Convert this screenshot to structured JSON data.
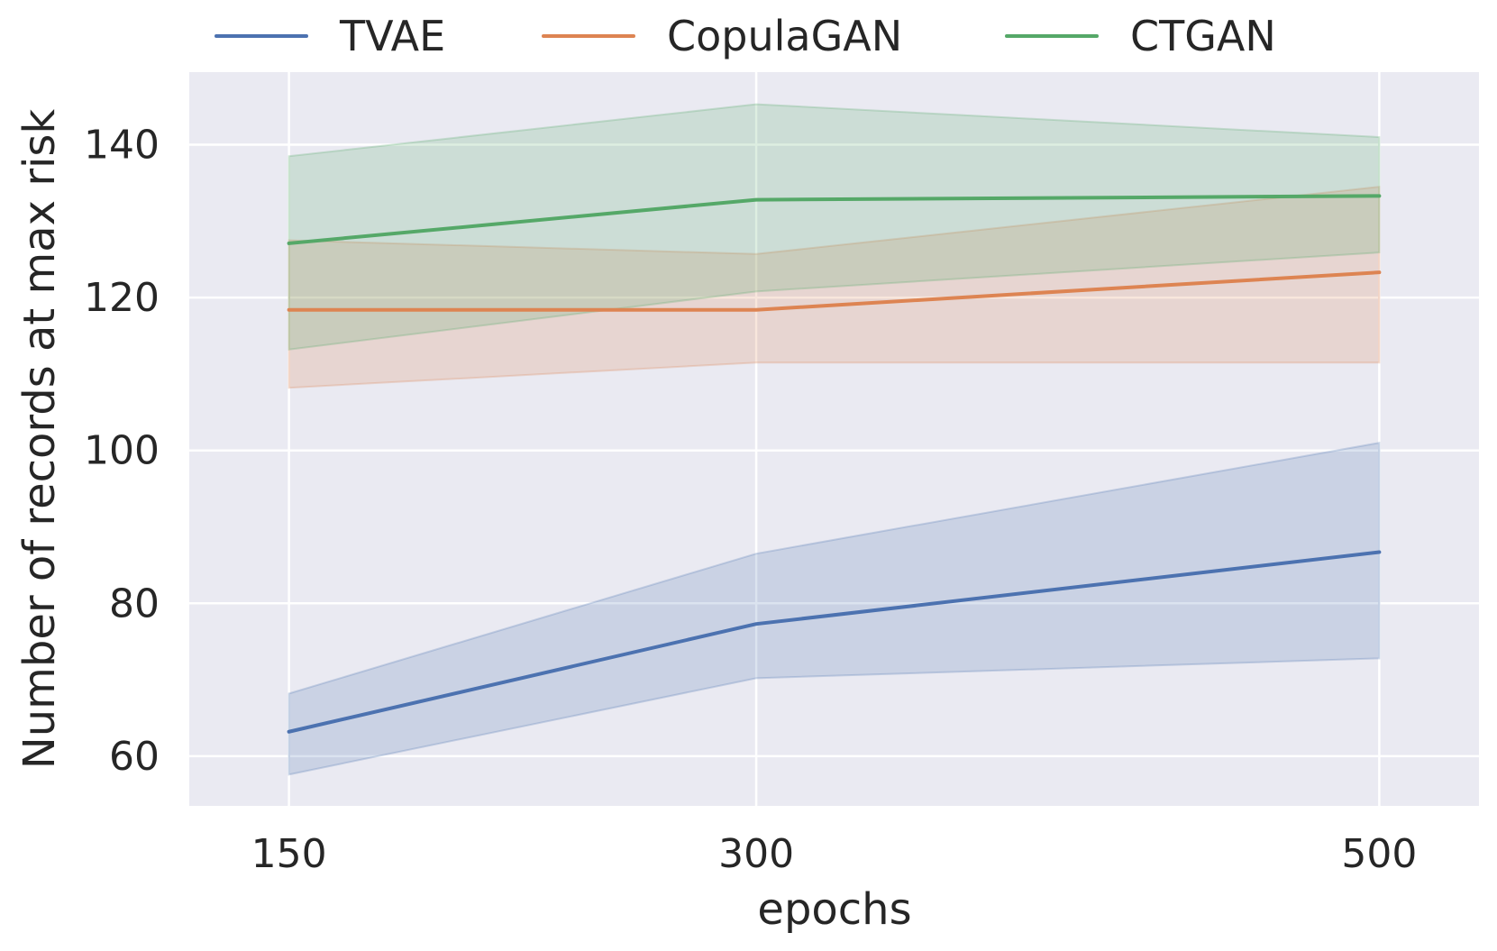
{
  "chart_data": {
    "type": "line",
    "title": "",
    "xlabel": "epochs",
    "ylabel": "Number of records at max risk",
    "x": [
      150,
      300,
      500
    ],
    "x_tick_labels": [
      "150",
      "300",
      "500"
    ],
    "y_ticks": [
      60,
      80,
      100,
      120,
      140
    ],
    "y_tick_labels": [
      "60",
      "80",
      "100",
      "120",
      "140"
    ],
    "ylim": [
      53.5,
      149.5
    ],
    "grid": true,
    "legend_position": "top",
    "colors": {
      "background": "#eaeaf2",
      "grid": "#ffffff",
      "text": "#262626"
    },
    "series": [
      {
        "name": "TVAE",
        "color": "#4c72b0",
        "values": [
          63.2,
          77.3,
          86.7
        ],
        "ci_lower": [
          57.6,
          70.2,
          72.8
        ],
        "ci_upper": [
          68.2,
          86.5,
          101.0
        ]
      },
      {
        "name": "CopulaGAN",
        "color": "#dd8452",
        "values": [
          118.4,
          118.4,
          123.3
        ],
        "ci_lower": [
          108.2,
          111.5,
          111.5
        ],
        "ci_upper": [
          127.5,
          125.7,
          134.5
        ]
      },
      {
        "name": "CTGAN",
        "color": "#55a868",
        "values": [
          127.1,
          132.8,
          133.3
        ],
        "ci_lower": [
          113.2,
          120.8,
          125.9
        ],
        "ci_upper": [
          138.5,
          145.3,
          141.0
        ]
      }
    ]
  }
}
